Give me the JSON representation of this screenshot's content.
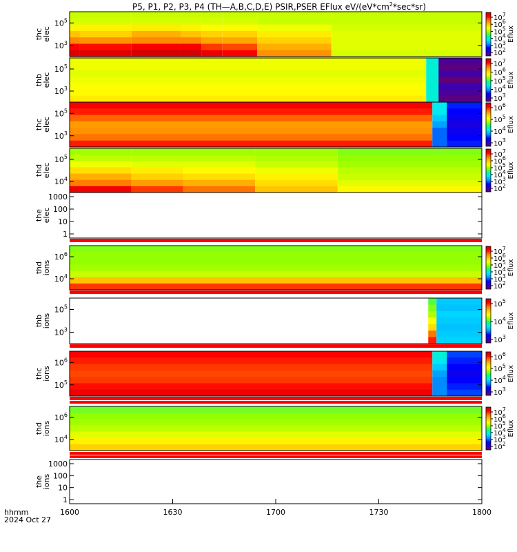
{
  "title": "P5, P1, P2, P3, P4 (TH—A,B,C,D,E) PSIR,PSER EFlux eV/(eV*cm",
  "title_sup": "2",
  "title_tail": "*sec*sr)",
  "footer": {
    "time_format": "hhmm",
    "date": "2024 Oct 27"
  },
  "colors": {
    "colormap": [
      "#6a006a",
      "#2a00c8",
      "#0000ff",
      "#0096ff",
      "#00e6ff",
      "#00ff96",
      "#96ff00",
      "#ffff00",
      "#ffc800",
      "#ff7800",
      "#ff0000",
      "#c80000"
    ],
    "gap_red": "#ff0000"
  },
  "chart_data": {
    "type": "heatmap",
    "x_ticks": [
      "1600",
      "1630",
      "1700",
      "1730",
      "1800"
    ],
    "xlim": [
      "16:00",
      "18:00"
    ],
    "panels": [
      {
        "ylabel": [
          "thc",
          "elec"
        ],
        "ytick_labels": [
          {
            "base": "10",
            "exp": "5"
          },
          {
            "base": "10",
            "exp": "3"
          }
        ],
        "cbar_label": "Eflux",
        "cbar_ticks": [
          {
            "base": "10",
            "exp": "7"
          },
          {
            "base": "10",
            "exp": "6"
          },
          {
            "base": "10",
            "exp": "5"
          },
          {
            "base": "10",
            "exp": "4"
          },
          {
            "base": "10",
            "exp": "3"
          },
          {
            "base": "10",
            "exp": "2"
          }
        ],
        "columns": [
          {
            "x0": 0.0,
            "x1": 0.5,
            "v": [
              2.3,
              2.4,
              2.9,
              3.6,
              4.2,
              5.2,
              5.7
            ]
          },
          {
            "x0": 0.5,
            "x1": 3.0,
            "v": [
              2.3,
              2.4,
              2.9,
              3.4,
              4.1,
              5.1,
              5.6
            ]
          },
          {
            "x0": 3.0,
            "x1": 5.4,
            "v": [
              2.3,
              2.4,
              3.0,
              3.8,
              4.2,
              5.3,
              5.8
            ]
          },
          {
            "x0": 5.4,
            "x1": 6.4,
            "v": [
              2.3,
              2.4,
              2.9,
              3.6,
              4.2,
              5.3,
              5.8
            ]
          },
          {
            "x0": 6.4,
            "x1": 7.4,
            "v": [
              2.3,
              2.4,
              2.8,
              3.4,
              3.9,
              4.8,
              5.5
            ]
          },
          {
            "x0": 7.4,
            "x1": 9.1,
            "v": [
              2.3,
              2.4,
              2.8,
              3.4,
              3.9,
              4.7,
              5.3
            ]
          },
          {
            "x0": 9.1,
            "x1": 12.7,
            "v": [
              2.3,
              2.3,
              2.6,
              3.0,
              3.4,
              3.8,
              4.1
            ]
          },
          {
            "x0": 12.7,
            "x1": 20.0,
            "v": [
              2.3,
              2.3,
              2.4,
              2.5,
              2.5,
              2.5,
              2.4
            ]
          }
        ]
      },
      {
        "ylabel": [
          "thb",
          "elec"
        ],
        "ytick_labels": [
          {
            "base": "10",
            "exp": "5"
          },
          {
            "base": "10",
            "exp": "3"
          }
        ],
        "cbar_label": "Eflux",
        "cbar_ticks": [
          {
            "base": "10",
            "exp": "7"
          },
          {
            "base": "10",
            "exp": "6"
          },
          {
            "base": "10",
            "exp": "5"
          },
          {
            "base": "10",
            "exp": "4"
          },
          {
            "base": "10",
            "exp": "3"
          }
        ],
        "columns": [
          {
            "x0": 0.0,
            "x1": 17.3,
            "v": [
              2.6,
              2.6,
              2.5,
              2.6,
              2.7,
              2.8,
              3.0
            ]
          },
          {
            "x0": 17.3,
            "x1": 17.9,
            "v": [
              0.6,
              0.6,
              0.6,
              0.6,
              0.6,
              0.6,
              0.6
            ]
          },
          {
            "x0": 17.9,
            "x1": 17.9,
            "v": [
              0.3,
              0.3,
              0.3,
              0.3,
              0.3,
              0.3,
              0.3
            ]
          },
          {
            "x0": 17.9,
            "x1": 20.0,
            "v": [
              -2.6,
              -2.8,
              -2.5,
              -2.9,
              -2.4,
              -2.6,
              -2.8
            ]
          }
        ]
      },
      {
        "ylabel": [
          "thc",
          "elec"
        ],
        "ytick_labels": [
          {
            "base": "10",
            "exp": "5"
          },
          {
            "base": "10",
            "exp": "3"
          }
        ],
        "cbar_label": "Eflux",
        "cbar_ticks": [
          {
            "base": "10",
            "exp": "6"
          },
          {
            "base": "10",
            "exp": "5"
          },
          {
            "base": "10",
            "exp": "4"
          },
          {
            "base": "10",
            "exp": "3"
          }
        ],
        "columns": [
          {
            "x0": 0.0,
            "x1": 17.6,
            "v": [
              5.3,
              5.0,
              4.5,
              4.0,
              4.1,
              4.4,
              5.0
            ]
          },
          {
            "x0": 17.6,
            "x1": 18.3,
            "v": [
              0.4,
              0.4,
              0.0,
              -0.4,
              -0.8,
              -0.8,
              -0.8
            ]
          },
          {
            "x0": 18.3,
            "x1": 20.0,
            "v": [
              -1.2,
              -1.4,
              -1.6,
              -1.8,
              -1.6,
              -1.4,
              -1.2
            ]
          }
        ]
      },
      {
        "ylabel": [
          "thd",
          "elec"
        ],
        "ytick_labels": [
          {
            "base": "10",
            "exp": "5"
          },
          {
            "base": "10",
            "exp": "4"
          }
        ],
        "cbar_label": "Eflux",
        "cbar_ticks": [
          {
            "base": "10",
            "exp": "7"
          },
          {
            "base": "10",
            "exp": "6"
          },
          {
            "base": "10",
            "exp": "5"
          },
          {
            "base": "10",
            "exp": "4"
          },
          {
            "base": "10",
            "exp": "3"
          },
          {
            "base": "10",
            "exp": "2"
          }
        ],
        "columns": [
          {
            "x0": 0.0,
            "x1": 3.0,
            "v": [
              2.0,
              2.2,
              2.6,
              3.2,
              3.8,
              4.3,
              5.4
            ]
          },
          {
            "x0": 3.0,
            "x1": 5.5,
            "v": [
              2.0,
              2.2,
              2.5,
              3.0,
              3.4,
              4.0,
              4.8
            ]
          },
          {
            "x0": 5.5,
            "x1": 9.0,
            "v": [
              2.0,
              2.2,
              2.5,
              2.8,
              3.2,
              3.8,
              4.4
            ]
          },
          {
            "x0": 9.0,
            "x1": 13.0,
            "v": [
              2.0,
              2.1,
              2.3,
              2.6,
              2.9,
              3.2,
              3.6
            ]
          },
          {
            "x0": 13.0,
            "x1": 20.0,
            "v": [
              1.8,
              1.9,
              2.0,
              2.2,
              2.3,
              2.5,
              2.8
            ]
          }
        ]
      },
      {
        "ylabel": [
          "the",
          "elec"
        ],
        "ytick_labels": [
          {
            "base": "1000",
            "exp": ""
          },
          {
            "base": "100",
            "exp": ""
          },
          {
            "base": "10",
            "exp": ""
          },
          {
            "base": "1",
            "exp": ""
          }
        ],
        "empty": true,
        "columns": []
      },
      {
        "ylabel": [
          "thd",
          "ions"
        ],
        "ytick_labels": [
          {
            "base": "10",
            "exp": "6"
          },
          {
            "base": "10",
            "exp": "4"
          }
        ],
        "cbar_label": "Eflux",
        "cbar_ticks": [
          {
            "base": "10",
            "exp": "7"
          },
          {
            "base": "10",
            "exp": "6"
          },
          {
            "base": "10",
            "exp": "5"
          },
          {
            "base": "10",
            "exp": "4"
          },
          {
            "base": "10",
            "exp": "3"
          },
          {
            "base": "10",
            "exp": "2"
          }
        ],
        "columns": [
          {
            "x0": 0.0,
            "x1": 20.0,
            "v": [
              1.8,
              1.9,
              1.9,
              2.0,
              2.3,
              3.6,
              4.8
            ]
          }
        ]
      },
      {
        "ylabel": [
          "thb",
          "ions"
        ],
        "ytick_labels": [
          {
            "base": "10",
            "exp": "5"
          },
          {
            "base": "10",
            "exp": "3"
          }
        ],
        "cbar_label": "Eflux",
        "cbar_ticks": [
          {
            "base": "10",
            "exp": "5"
          },
          {
            "base": "10",
            "exp": "4"
          },
          {
            "base": "10",
            "exp": "3"
          }
        ],
        "empty": false,
        "columns": [
          {
            "x0": 17.4,
            "x1": 17.8,
            "v": [
              1.5,
              1.8,
              2.1,
              2.7,
              3.2,
              4.4,
              5.0
            ]
          },
          {
            "x0": 17.8,
            "x1": 20.0,
            "v": [
              0.0,
              -0.1,
              0.1,
              0.0,
              -0.1,
              0.0,
              0.1
            ]
          }
        ]
      },
      {
        "ylabel": [
          "thc",
          "ions"
        ],
        "ytick_labels": [
          {
            "base": "10",
            "exp": "6"
          },
          {
            "base": "10",
            "exp": "5"
          }
        ],
        "cbar_label": "Eflux",
        "cbar_ticks": [
          {
            "base": "10",
            "exp": "6"
          },
          {
            "base": "10",
            "exp": "5"
          },
          {
            "base": "10",
            "exp": "4"
          },
          {
            "base": "10",
            "exp": "3"
          }
        ],
        "columns": [
          {
            "x0": 0.0,
            "x1": 17.6,
            "v": [
              5.2,
              5.0,
              4.8,
              4.7,
              4.8,
              5.1,
              5.4
            ]
          },
          {
            "x0": 17.6,
            "x1": 18.3,
            "v": [
              0.6,
              0.4,
              0.0,
              -0.4,
              -0.6,
              -0.6,
              -0.6
            ]
          },
          {
            "x0": 18.3,
            "x1": 20.0,
            "v": [
              -1.0,
              -1.2,
              -1.4,
              -1.6,
              -1.4,
              -1.2,
              -1.0
            ]
          }
        ]
      },
      {
        "ylabel": [
          "thd",
          "ions"
        ],
        "ytick_labels": [
          {
            "base": "10",
            "exp": "6"
          },
          {
            "base": "10",
            "exp": "4"
          }
        ],
        "cbar_label": "Eflux",
        "cbar_ticks": [
          {
            "base": "10",
            "exp": "7"
          },
          {
            "base": "10",
            "exp": "6"
          },
          {
            "base": "10",
            "exp": "5"
          },
          {
            "base": "10",
            "exp": "4"
          },
          {
            "base": "10",
            "exp": "3"
          },
          {
            "base": "10",
            "exp": "2"
          }
        ],
        "columns": [
          {
            "x0": 0.0,
            "x1": 20.0,
            "v": [
              1.7,
              1.9,
              2.0,
              2.2,
              2.5,
              2.9,
              3.4
            ]
          }
        ]
      },
      {
        "ylabel": [
          "the",
          "ions"
        ],
        "ytick_labels": [
          {
            "base": "1000",
            "exp": ""
          },
          {
            "base": "100",
            "exp": ""
          },
          {
            "base": "10",
            "exp": ""
          },
          {
            "base": "1",
            "exp": ""
          }
        ],
        "empty": true,
        "columns": []
      }
    ]
  }
}
